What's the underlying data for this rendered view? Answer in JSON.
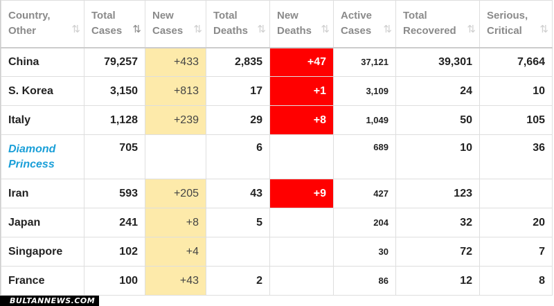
{
  "headers": [
    {
      "line1": "Country,",
      "line2": "Other",
      "sort_active": false
    },
    {
      "line1": "Total",
      "line2": "Cases",
      "sort_active": true
    },
    {
      "line1": "New",
      "line2": "Cases",
      "sort_active": false
    },
    {
      "line1": "Total",
      "line2": "Deaths",
      "sort_active": false
    },
    {
      "line1": "New",
      "line2": "Deaths",
      "sort_active": false
    },
    {
      "line1": "Active",
      "line2": "Cases",
      "sort_active": false
    },
    {
      "line1": "Total",
      "line2": "Recovered",
      "sort_active": false
    },
    {
      "line1": "Serious,",
      "line2": "Critical",
      "sort_active": false
    }
  ],
  "sort_icon": "⇅",
  "rows": [
    {
      "country": "China",
      "total_cases": "79,257",
      "new_cases": "+433",
      "total_deaths": "2,835",
      "new_deaths": "+47",
      "active_cases": "37,121",
      "total_recovered": "39,301",
      "serious_critical": "7,664"
    },
    {
      "country": "S. Korea",
      "total_cases": "3,150",
      "new_cases": "+813",
      "total_deaths": "17",
      "new_deaths": "+1",
      "active_cases": "3,109",
      "total_recovered": "24",
      "serious_critical": "10"
    },
    {
      "country": "Italy",
      "total_cases": "1,128",
      "new_cases": "+239",
      "total_deaths": "29",
      "new_deaths": "+8",
      "active_cases": "1,049",
      "total_recovered": "50",
      "serious_critical": "105"
    },
    {
      "country": "Diamond Princess",
      "total_cases": "705",
      "new_cases": "",
      "total_deaths": "6",
      "new_deaths": "",
      "active_cases": "689",
      "total_recovered": "10",
      "serious_critical": "36"
    },
    {
      "country": "Iran",
      "total_cases": "593",
      "new_cases": "+205",
      "total_deaths": "43",
      "new_deaths": "+9",
      "active_cases": "427",
      "total_recovered": "123",
      "serious_critical": ""
    },
    {
      "country": "Japan",
      "total_cases": "241",
      "new_cases": "+8",
      "total_deaths": "5",
      "new_deaths": "",
      "active_cases": "204",
      "total_recovered": "32",
      "serious_critical": "20"
    },
    {
      "country": "Singapore",
      "total_cases": "102",
      "new_cases": "+4",
      "total_deaths": "",
      "new_deaths": "",
      "active_cases": "30",
      "total_recovered": "72",
      "serious_critical": "7"
    },
    {
      "country": "France",
      "total_cases": "100",
      "new_cases": "+43",
      "total_deaths": "2",
      "new_deaths": "",
      "active_cases": "86",
      "total_recovered": "12",
      "serious_critical": "8"
    }
  ],
  "colors": {
    "new_cases_highlight": "#fdeaaa",
    "new_deaths_highlight": "#ff0000",
    "ship_link": "#1a9fd8"
  },
  "watermark": "BULTANNEWS.COM"
}
